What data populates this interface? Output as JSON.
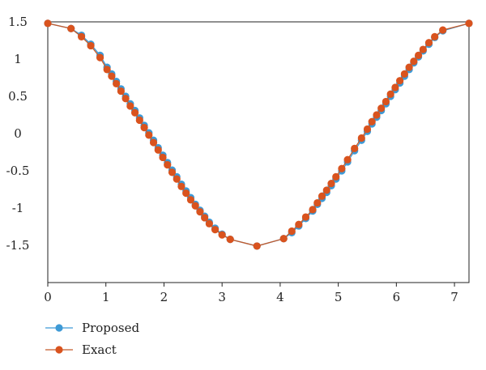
{
  "chart_data": {
    "type": "line",
    "title": "",
    "xlabel": "",
    "ylabel": "",
    "xlim": [
      0,
      7.25
    ],
    "ylim": [
      -2.0,
      1.5
    ],
    "x_ticks": [
      0,
      1,
      2,
      3,
      4,
      5,
      6,
      7
    ],
    "x_tick_labels": [
      "0",
      "1",
      "2",
      "3",
      "4",
      "5",
      "6",
      "7"
    ],
    "y_ticks": [
      1.5,
      1,
      0.5,
      0,
      -0.5,
      -1,
      -1.5
    ],
    "y_tick_labels": [
      "1.5",
      "1",
      "0.5",
      "0",
      "-0.5",
      "-1",
      "-1.5"
    ],
    "grid": false,
    "legend_position": "below-left",
    "series": [
      {
        "name": "Proposed",
        "color": "#3e9ad6",
        "line_color": "#3e9ad6",
        "x": [
          0.0,
          0.4,
          0.58,
          0.74,
          0.9,
          1.02,
          1.1,
          1.18,
          1.26,
          1.34,
          1.42,
          1.5,
          1.58,
          1.66,
          1.74,
          1.82,
          1.9,
          1.98,
          2.06,
          2.14,
          2.22,
          2.3,
          2.38,
          2.46,
          2.54,
          2.62,
          2.7,
          2.78,
          2.88,
          3.0,
          3.14,
          3.6,
          4.06,
          4.2,
          4.32,
          4.44,
          4.56,
          4.64,
          4.72,
          4.8,
          4.88,
          4.96,
          5.06,
          5.16,
          5.28,
          5.4,
          5.5,
          5.58,
          5.66,
          5.74,
          5.82,
          5.9,
          5.98,
          6.06,
          6.14,
          6.22,
          6.3,
          6.38,
          6.46,
          6.56,
          6.66,
          6.8,
          7.25
        ],
        "y": [
          1.48,
          1.41,
          1.32,
          1.2,
          1.05,
          0.89,
          0.8,
          0.7,
          0.6,
          0.5,
          0.4,
          0.31,
          0.21,
          0.11,
          0.01,
          -0.09,
          -0.19,
          -0.29,
          -0.39,
          -0.49,
          -0.58,
          -0.68,
          -0.77,
          -0.86,
          -0.95,
          -1.03,
          -1.11,
          -1.19,
          -1.27,
          -1.35,
          -1.42,
          -1.51,
          -1.41,
          -1.33,
          -1.24,
          -1.14,
          -1.04,
          -0.95,
          -0.87,
          -0.79,
          -0.7,
          -0.61,
          -0.5,
          -0.38,
          -0.23,
          -0.09,
          0.03,
          0.13,
          0.22,
          0.31,
          0.4,
          0.5,
          0.59,
          0.68,
          0.77,
          0.86,
          0.95,
          1.03,
          1.11,
          1.2,
          1.29,
          1.38,
          1.48
        ]
      },
      {
        "name": "Exact",
        "color": "#d9531e",
        "line_color": "#c45a2b",
        "x": [
          0.0,
          0.4,
          0.58,
          0.74,
          0.9,
          1.02,
          1.1,
          1.18,
          1.26,
          1.34,
          1.42,
          1.5,
          1.58,
          1.66,
          1.74,
          1.82,
          1.9,
          1.98,
          2.06,
          2.14,
          2.22,
          2.3,
          2.38,
          2.46,
          2.54,
          2.62,
          2.7,
          2.78,
          2.88,
          3.0,
          3.14,
          3.6,
          4.06,
          4.2,
          4.32,
          4.44,
          4.56,
          4.64,
          4.72,
          4.8,
          4.88,
          4.96,
          5.06,
          5.16,
          5.28,
          5.4,
          5.5,
          5.58,
          5.66,
          5.74,
          5.82,
          5.9,
          5.98,
          6.06,
          6.14,
          6.22,
          6.3,
          6.38,
          6.46,
          6.56,
          6.66,
          6.8,
          7.25
        ],
        "y": [
          1.48,
          1.41,
          1.3,
          1.18,
          1.02,
          0.86,
          0.77,
          0.67,
          0.57,
          0.47,
          0.37,
          0.28,
          0.18,
          0.08,
          -0.02,
          -0.12,
          -0.22,
          -0.32,
          -0.42,
          -0.52,
          -0.61,
          -0.71,
          -0.8,
          -0.89,
          -0.97,
          -1.05,
          -1.13,
          -1.21,
          -1.29,
          -1.36,
          -1.42,
          -1.51,
          -1.41,
          -1.31,
          -1.22,
          -1.12,
          -1.02,
          -0.93,
          -0.84,
          -0.76,
          -0.67,
          -0.58,
          -0.47,
          -0.35,
          -0.2,
          -0.06,
          0.06,
          0.16,
          0.25,
          0.34,
          0.43,
          0.53,
          0.62,
          0.71,
          0.8,
          0.89,
          0.97,
          1.05,
          1.13,
          1.22,
          1.3,
          1.39,
          1.48
        ]
      }
    ]
  }
}
